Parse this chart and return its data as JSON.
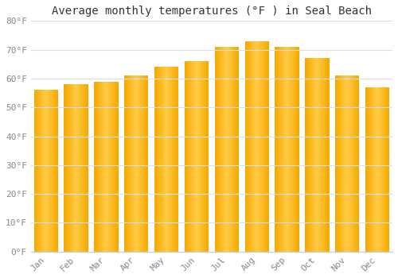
{
  "title": "Average monthly temperatures (°F ) in Seal Beach",
  "months": [
    "Jan",
    "Feb",
    "Mar",
    "Apr",
    "May",
    "Jun",
    "Jul",
    "Aug",
    "Sep",
    "Oct",
    "Nov",
    "Dec"
  ],
  "values": [
    56,
    58,
    59,
    61,
    64,
    66,
    71,
    73,
    71,
    67,
    61,
    57
  ],
  "bar_color_edge": "#F5A800",
  "bar_color_center": "#FFCC44",
  "background_color": "#FFFFFF",
  "plot_bg_color": "#FFFFFF",
  "ylim": [
    0,
    80
  ],
  "yticks": [
    0,
    10,
    20,
    30,
    40,
    50,
    60,
    70,
    80
  ],
  "ytick_labels": [
    "0°F",
    "10°F",
    "20°F",
    "30°F",
    "40°F",
    "50°F",
    "60°F",
    "70°F",
    "80°F"
  ],
  "title_fontsize": 10,
  "tick_fontsize": 8,
  "grid_color": "#E0E0E0",
  "bar_width": 0.8,
  "x_label_rotation": 45
}
